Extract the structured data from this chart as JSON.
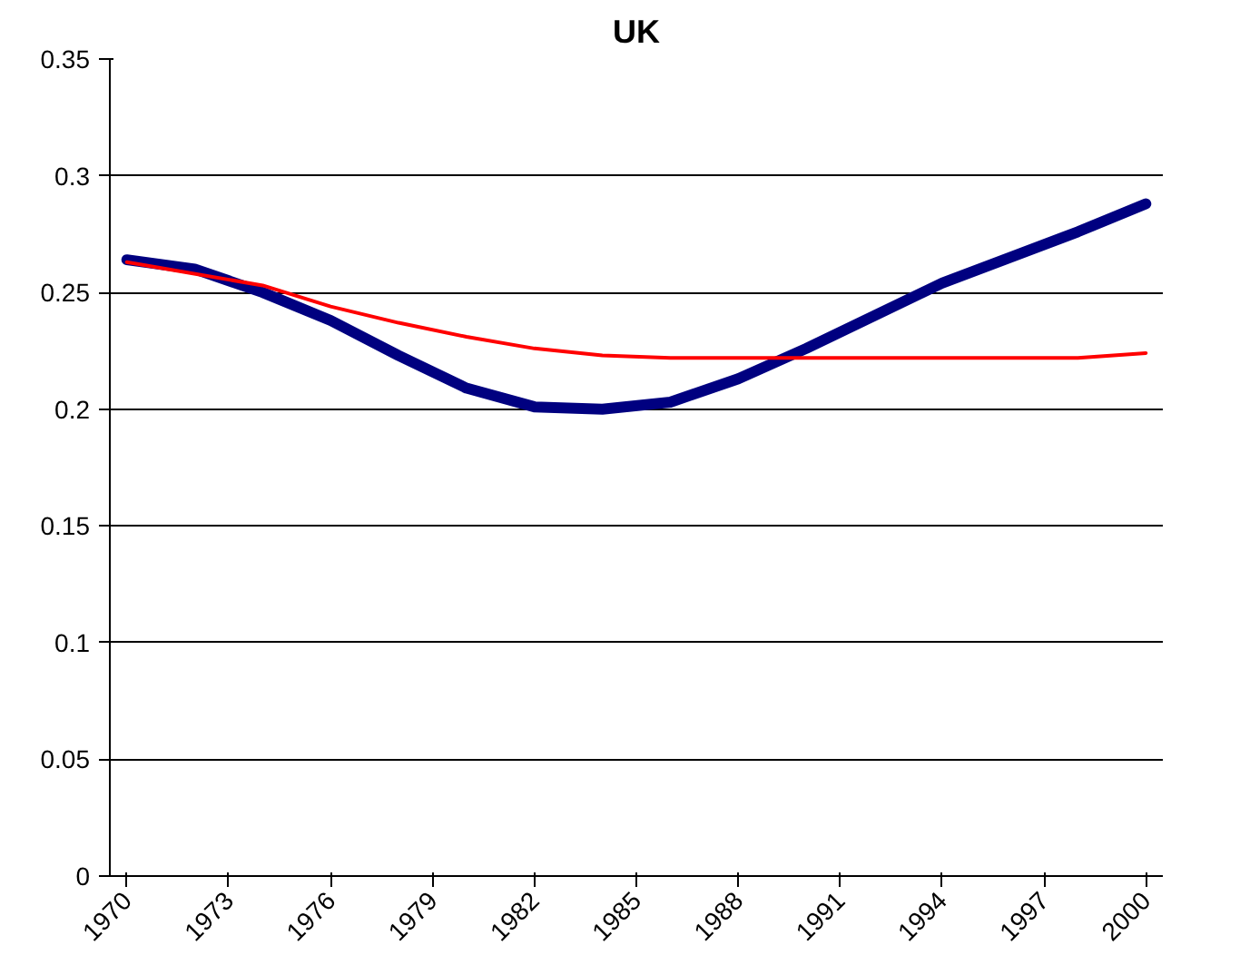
{
  "chart_data": {
    "type": "line",
    "title": "UK",
    "xlim": [
      1969.5,
      2000.5
    ],
    "xticks": [
      1970,
      1973,
      1976,
      1979,
      1982,
      1985,
      1988,
      1991,
      1994,
      1997,
      2000
    ],
    "ylim": [
      0,
      0.35
    ],
    "yticks": [
      0,
      0.05,
      0.1,
      0.15,
      0.2,
      0.25,
      0.3,
      0.35
    ],
    "grid": "y",
    "series": [
      {
        "color": "#000080",
        "x": [
          1970,
          1972,
          1974,
          1976,
          1978,
          1980,
          1982,
          1984,
          1986,
          1988,
          1990,
          1992,
          1994,
          1996,
          1998,
          2000
        ],
        "values": [
          0.264,
          0.26,
          0.25,
          0.238,
          0.223,
          0.209,
          0.201,
          0.2,
          0.203,
          0.213,
          0.226,
          0.24,
          0.254,
          0.265,
          0.276,
          0.288
        ]
      },
      {
        "color": "#ff0000",
        "x": [
          1970,
          1974,
          1976,
          1978,
          1980,
          1982,
          1984,
          1986,
          1990,
          1994,
          1998,
          2000
        ],
        "values": [
          0.263,
          0.253,
          0.244,
          0.237,
          0.231,
          0.226,
          0.223,
          0.222,
          0.222,
          0.222,
          0.222,
          0.224
        ]
      }
    ]
  }
}
